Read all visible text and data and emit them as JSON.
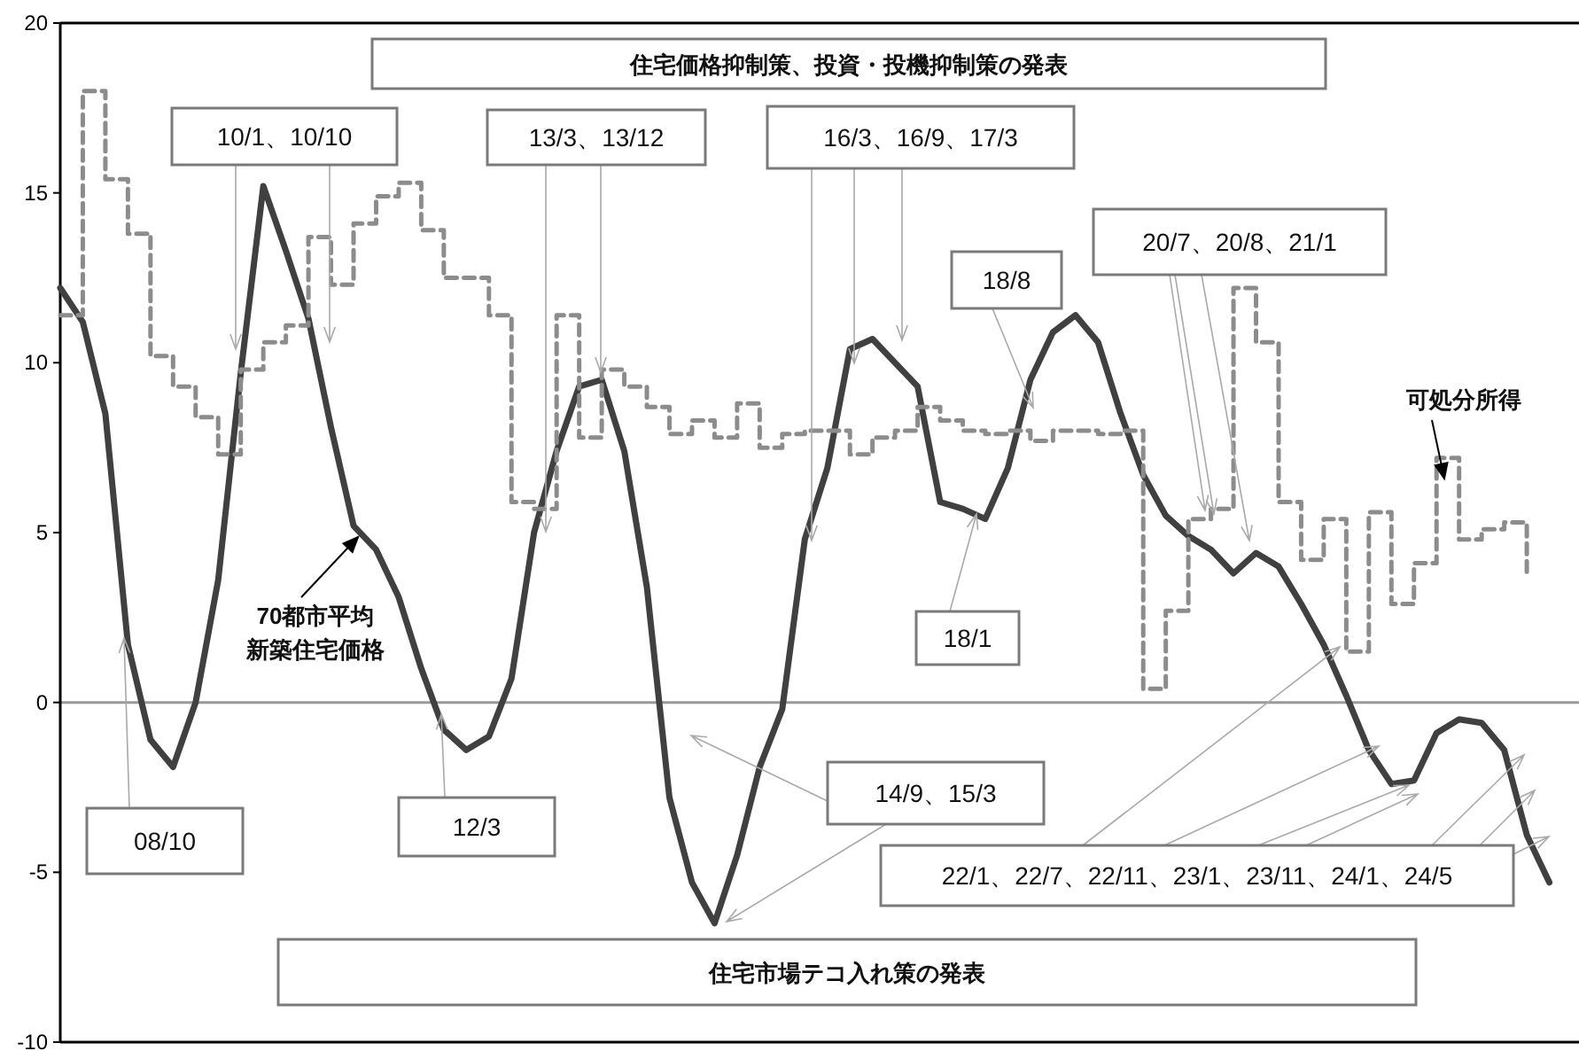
{
  "chart_data": {
    "type": "line",
    "categories": [
      null,
      null,
      null,
      null,
      null,
      null,
      null,
      null,
      null,
      null,
      null,
      null,
      null,
      null,
      null,
      null,
      null,
      null,
      null,
      null,
      null,
      null,
      null,
      null,
      null,
      null,
      null,
      null,
      null,
      null,
      null,
      null,
      null,
      null,
      null,
      null,
      null,
      null,
      null,
      null,
      null,
      null,
      null,
      null,
      null,
      null,
      null,
      null,
      null,
      null,
      null,
      null,
      null,
      null,
      null,
      null,
      null,
      null,
      null,
      null,
      null,
      null,
      null,
      null,
      null,
      null,
      null
    ],
    "series": [
      {
        "name": "70都市平均新築住宅価格",
        "line_style": "solid",
        "color": "#404040",
        "values": [
          12.2,
          11.2,
          8.5,
          1.7,
          -1.1,
          -1.9,
          0.0,
          3.6,
          9.7,
          15.2,
          13.3,
          11.3,
          8.1,
          5.2,
          4.5,
          3.1,
          1.0,
          -0.8,
          -1.4,
          -1.0,
          0.7,
          5.0,
          7.4,
          9.3,
          9.5,
          7.4,
          3.4,
          -2.8,
          -5.3,
          -6.5,
          -4.5,
          -1.9,
          -0.2,
          4.8,
          6.9,
          10.4,
          10.7,
          10.0,
          9.3,
          5.9,
          5.7,
          5.4,
          6.9,
          9.5,
          10.9,
          11.4,
          10.6,
          8.5,
          6.7,
          5.5,
          4.9,
          4.5,
          3.8,
          4.4,
          4.0,
          2.9,
          1.7,
          0.2,
          -1.4,
          -2.4,
          -2.3,
          -0.9,
          -0.5,
          -0.6,
          -1.4,
          -3.9,
          -5.3
        ]
      },
      {
        "name": "可処分所得",
        "type": "step",
        "line_style": "dashed",
        "color": "#8c8c8c",
        "values": [
          11.4,
          18.0,
          15.4,
          13.8,
          10.2,
          9.3,
          8.4,
          7.3,
          9.8,
          10.6,
          11.1,
          13.7,
          12.3,
          14.1,
          14.9,
          15.3,
          13.9,
          12.5,
          12.5,
          11.4,
          5.9,
          5.7,
          11.4,
          7.8,
          9.8,
          9.3,
          8.7,
          7.9,
          8.3,
          7.8,
          8.8,
          7.5,
          7.9,
          8.0,
          8.0,
          7.3,
          7.8,
          8.0,
          8.7,
          8.3,
          8.0,
          7.9,
          8.0,
          7.7,
          8.0,
          8.0,
          7.9,
          8.0,
          0.4,
          2.7,
          5.4,
          5.7,
          12.2,
          10.6,
          5.9,
          4.2,
          5.4,
          1.5,
          5.6,
          2.9,
          4.1,
          7.2,
          4.8,
          5.1,
          5.3,
          3.8,
          null
        ]
      }
    ],
    "ylim": [
      -10,
      20
    ],
    "yticks": [
      {
        "value": -10,
        "label": "-10"
      },
      -5,
      0,
      5,
      10,
      15,
      20
    ],
    "ref_lines": [
      {
        "axis": "y",
        "value": 0,
        "color": "#9a9a9a"
      }
    ],
    "annotations": [
      "住宅価格抑制策、投資・投機抑制策の発表",
      "10/1、10/10",
      "13/3、13/12",
      "16/3、16/9、17/3",
      "18/8",
      "20/7、20/8、21/1",
      "08/10",
      "12/3",
      "18/1",
      "14/9、15/3",
      "22/1、22/7、22/11、23/1、23/11、24/1、24/5",
      "住宅市場テコ入れ策の発表"
    ]
  }
}
